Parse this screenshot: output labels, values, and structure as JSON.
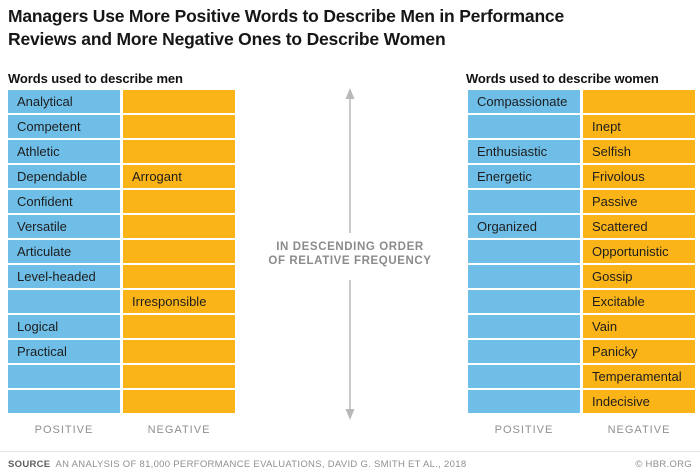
{
  "title": "Managers Use More Positive Words to Describe Men in Performance Reviews and More Negative Ones to Describe Women",
  "men_table": {
    "header": "Words used to describe men",
    "positive_label": "POSITIVE",
    "negative_label": "NEGATIVE",
    "rows": [
      {
        "positive": "Analytical",
        "negative": ""
      },
      {
        "positive": "Competent",
        "negative": ""
      },
      {
        "positive": "Athletic",
        "negative": ""
      },
      {
        "positive": "Dependable",
        "negative": "Arrogant"
      },
      {
        "positive": "Confident",
        "negative": ""
      },
      {
        "positive": "Versatile",
        "negative": ""
      },
      {
        "positive": "Articulate",
        "negative": ""
      },
      {
        "positive": "Level-headed",
        "negative": ""
      },
      {
        "positive": "",
        "negative": "Irresponsible"
      },
      {
        "positive": "Logical",
        "negative": ""
      },
      {
        "positive": "Practical",
        "negative": ""
      },
      {
        "positive": "",
        "negative": ""
      },
      {
        "positive": "",
        "negative": ""
      }
    ]
  },
  "women_table": {
    "header": "Words used to describe women",
    "positive_label": "POSITIVE",
    "negative_label": "NEGATIVE",
    "rows": [
      {
        "positive": "Compassionate",
        "negative": ""
      },
      {
        "positive": "",
        "negative": "Inept"
      },
      {
        "positive": "Enthusiastic",
        "negative": "Selfish"
      },
      {
        "positive": "Energetic",
        "negative": "Frivolous"
      },
      {
        "positive": "",
        "negative": "Passive"
      },
      {
        "positive": "Organized",
        "negative": "Scattered"
      },
      {
        "positive": "",
        "negative": "Opportunistic"
      },
      {
        "positive": "",
        "negative": "Gossip"
      },
      {
        "positive": "",
        "negative": "Excitable"
      },
      {
        "positive": "",
        "negative": "Vain"
      },
      {
        "positive": "",
        "negative": "Panicky"
      },
      {
        "positive": "",
        "negative": "Temperamental"
      },
      {
        "positive": "",
        "negative": "Indecisive"
      }
    ]
  },
  "center_note": {
    "line1": "IN DESCENDING ORDER",
    "line2": "OF RELATIVE FREQUENCY"
  },
  "footer": {
    "source_label": "SOURCE",
    "source_text": "AN ANALYSIS OF 81,000 PERFORMANCE EVALUATIONS, DAVID G. SMITH ET AL., 2018",
    "credit": "© HBR.ORG"
  },
  "colors": {
    "positive_blue": "#6FBEE8",
    "negative_amber": "#FBB417",
    "title_text": "#161616",
    "muted_gray": "#8F8F8F",
    "arrow_gray": "#B9B9B9"
  },
  "chart_data": {
    "type": "table",
    "title": "Managers Use More Positive Words to Describe Men in Performance Reviews and More Negative Ones to Describe Women",
    "annotation": "IN DESCENDING ORDER OF RELATIVE FREQUENCY",
    "tables": [
      {
        "name": "Words used to describe men",
        "columns": [
          "POSITIVE",
          "NEGATIVE"
        ],
        "rows": [
          [
            "Analytical",
            ""
          ],
          [
            "Competent",
            ""
          ],
          [
            "Athletic",
            ""
          ],
          [
            "Dependable",
            "Arrogant"
          ],
          [
            "Confident",
            ""
          ],
          [
            "Versatile",
            ""
          ],
          [
            "Articulate",
            ""
          ],
          [
            "Level-headed",
            ""
          ],
          [
            "",
            "Irresponsible"
          ],
          [
            "Logical",
            ""
          ],
          [
            "Practical",
            ""
          ],
          [
            "",
            ""
          ],
          [
            "",
            ""
          ]
        ],
        "positive_words_in_order": [
          "Analytical",
          "Competent",
          "Athletic",
          "Dependable",
          "Confident",
          "Versatile",
          "Articulate",
          "Level-headed",
          "Logical",
          "Practical"
        ],
        "negative_words_in_order": [
          "Arrogant",
          "Irresponsible"
        ]
      },
      {
        "name": "Words used to describe women",
        "columns": [
          "POSITIVE",
          "NEGATIVE"
        ],
        "rows": [
          [
            "Compassionate",
            ""
          ],
          [
            "",
            "Inept"
          ],
          [
            "Enthusiastic",
            "Selfish"
          ],
          [
            "Energetic",
            "Frivolous"
          ],
          [
            "",
            "Passive"
          ],
          [
            "Organized",
            "Scattered"
          ],
          [
            "",
            "Opportunistic"
          ],
          [
            "",
            "Gossip"
          ],
          [
            "",
            "Excitable"
          ],
          [
            "",
            "Vain"
          ],
          [
            "",
            "Panicky"
          ],
          [
            "",
            "Temperamental"
          ],
          [
            "",
            "Indecisive"
          ]
        ],
        "positive_words_in_order": [
          "Compassionate",
          "Enthusiastic",
          "Energetic",
          "Organized"
        ],
        "negative_words_in_order": [
          "Inept",
          "Selfish",
          "Frivolous",
          "Passive",
          "Scattered",
          "Opportunistic",
          "Gossip",
          "Excitable",
          "Vain",
          "Panicky",
          "Temperamental",
          "Indecisive"
        ]
      }
    ],
    "source": "AN ANALYSIS OF 81,000 PERFORMANCE EVALUATIONS, DAVID G. SMITH ET AL., 2018",
    "credit": "© HBR.ORG",
    "legend": {
      "positive_color": "#6FBEE8",
      "negative_color": "#FBB417"
    }
  }
}
